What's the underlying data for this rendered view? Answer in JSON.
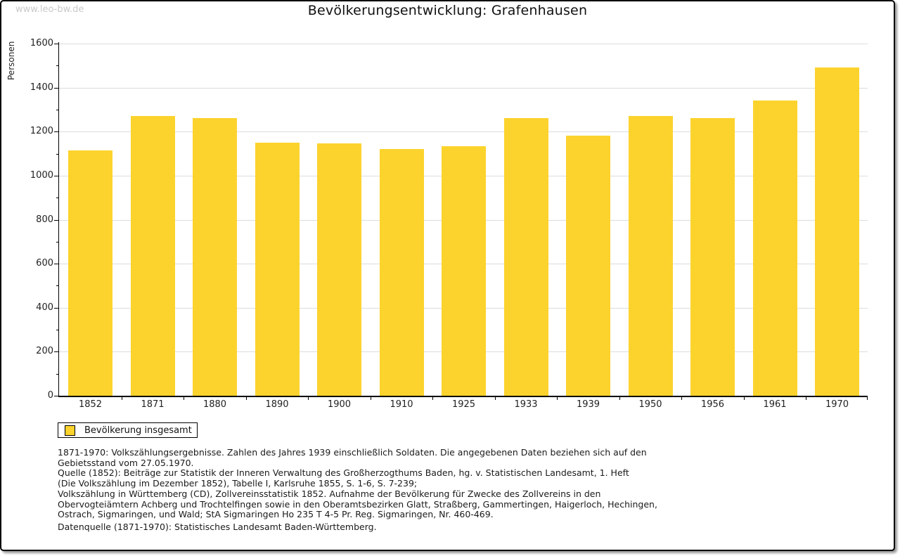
{
  "page": {
    "watermark": "www.leo-bw.de"
  },
  "chart_data": {
    "type": "bar",
    "title": "Bevölkerungsentwicklung: Grafenhausen",
    "xlabel": "",
    "ylabel": "Personen",
    "ylim": [
      0,
      1600
    ],
    "ytick_step": 200,
    "ytick_minor_step": 100,
    "grid": true,
    "bar_color": "#FCD32D",
    "grid_color": "#dcdcdc",
    "categories": [
      "1852",
      "1871",
      "1880",
      "1890",
      "1900",
      "1910",
      "1925",
      "1933",
      "1939",
      "1950",
      "1956",
      "1961",
      "1970"
    ],
    "values": [
      1115,
      1270,
      1263,
      1150,
      1145,
      1120,
      1133,
      1262,
      1183,
      1272,
      1261,
      1340,
      1492
    ],
    "legend": {
      "label": "Bevölkerung insgesamt",
      "position": "bottom-left"
    }
  },
  "footnotes": {
    "lines": [
      "1871-1970: Volkszählungsergebnisse. Zahlen des Jahres 1939 einschließlich Soldaten. Die angegebenen Daten beziehen sich auf den",
      "Gebietsstand vom 27.05.1970.",
      "Quelle (1852): Beiträge zur Statistik der Inneren Verwaltung des Großherzogthums Baden, hg. v. Statistischen Landesamt, 1. Heft",
      "(Die Volkszählung im Dezember 1852), Tabelle I, Karlsruhe 1855, S. 1-6, S. 7-239;",
      "Volkszählung in Württemberg (CD), Zollvereinsstatistik 1852. Aufnahme der Bevölkerung für Zwecke des Zollvereins in den",
      "Obervogteiämtern Achberg und Trochtelfingen sowie in den Oberamtsbezirken Glatt, Straßberg, Gammertingen, Haigerloch, Hechingen,",
      "Ostrach, Sigmaringen, und Wald; StA Sigmaringen Ho 235 T 4-5 Pr. Reg. Sigmaringen, Nr. 460-469."
    ],
    "datasource": "Datenquelle (1871-1970): Statistisches Landesamt Baden-Württemberg."
  }
}
